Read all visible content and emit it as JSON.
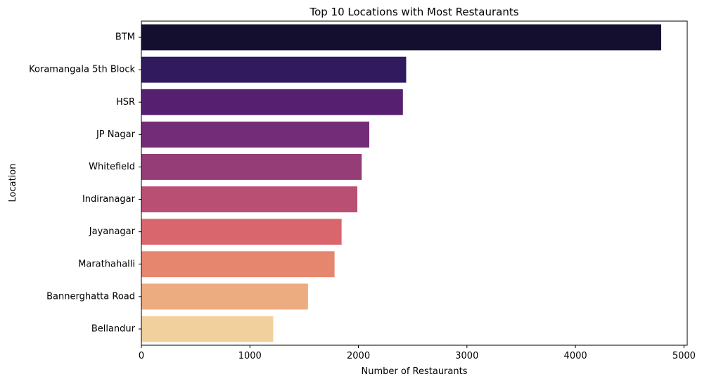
{
  "chart_data": {
    "type": "bar",
    "orientation": "horizontal",
    "title": "Top 10 Locations with Most Restaurants",
    "xlabel": "Number of Restaurants",
    "ylabel": "Location",
    "categories": [
      "BTM",
      "Koramangala 5th Block",
      "HSR",
      "JP Nagar",
      "Whitefield",
      "Indiranagar",
      "Jayanagar",
      "Marathahalli",
      "Bannerghatta Road",
      "Bellandur"
    ],
    "values": [
      4790,
      2440,
      2410,
      2100,
      2030,
      1990,
      1845,
      1780,
      1535,
      1215
    ],
    "colors": [
      "#140f2f",
      "#311a5e",
      "#561f70",
      "#732c77",
      "#943d77",
      "#b94f73",
      "#d9666d",
      "#e6866e",
      "#edab80",
      "#f2d09e"
    ],
    "xlim": [
      0,
      5030
    ],
    "xticks": [
      0,
      1000,
      2000,
      3000,
      4000,
      5000
    ],
    "xtick_labels": [
      "0",
      "1000",
      "2000",
      "3000",
      "4000",
      "5000"
    ],
    "grid": false,
    "legend": false
  }
}
